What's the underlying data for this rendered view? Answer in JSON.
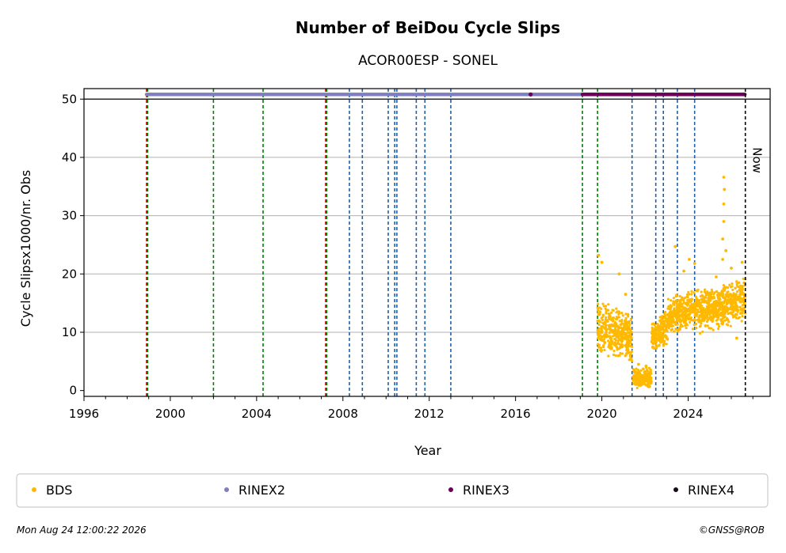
{
  "chart_data": {
    "type": "scatter",
    "title": "Number of BeiDou Cycle Slips",
    "subtitle": "ACOR00ESP - SONEL",
    "xlabel": "Year",
    "ylabel": "Cycle Slipsx1000/nr. Obs",
    "xlim": [
      1996,
      2027.8
    ],
    "ylim": [
      -1,
      51.8
    ],
    "xticks": [
      "1996",
      "2000",
      "2004",
      "2008",
      "2012",
      "2016",
      "2020",
      "2024"
    ],
    "yticks": [
      "0",
      "10",
      "20",
      "30",
      "40",
      "50"
    ],
    "grid": "horizontal",
    "legend_position": "bottom",
    "now_label": "Now",
    "now_date": 2026.65,
    "series": [
      {
        "name": "BDS",
        "color": "#ffb900"
      },
      {
        "name": "RINEX2",
        "color": "#7f7fbf"
      },
      {
        "name": "RINEX3",
        "color": "#6b0058"
      },
      {
        "name": "RINEX4",
        "color": "#1a0a1a"
      }
    ],
    "bds_segments": [
      {
        "x": [
          2019.8,
          2021.4
        ],
        "y": [
          5.5,
          14.5
        ],
        "trend": -0.5
      },
      {
        "x": [
          2021.45,
          2022.3
        ],
        "y": [
          0.3,
          4.0
        ],
        "trend": 0.0
      },
      {
        "x": [
          2022.3,
          2023.05
        ],
        "y": [
          7.0,
          13.0
        ],
        "trend": 0.5
      },
      {
        "x": [
          2023.05,
          2024.55
        ],
        "y": [
          10.0,
          17.0
        ],
        "trend": 0.3
      },
      {
        "x": [
          2024.55,
          2026.65
        ],
        "y": [
          10.5,
          18.5
        ],
        "trend": 0.6
      }
    ],
    "bds_outliers": [
      {
        "x": 2019.85,
        "y": 23.2
      },
      {
        "x": 2020.0,
        "y": 22.0
      },
      {
        "x": 2020.8,
        "y": 20.0
      },
      {
        "x": 2021.1,
        "y": 16.5
      },
      {
        "x": 2021.7,
        "y": 4.5
      },
      {
        "x": 2022.05,
        "y": 4.2
      },
      {
        "x": 2023.4,
        "y": 24.7
      },
      {
        "x": 2023.8,
        "y": 20.5
      },
      {
        "x": 2024.05,
        "y": 22.5
      },
      {
        "x": 2024.3,
        "y": 21.8
      },
      {
        "x": 2025.3,
        "y": 19.5
      },
      {
        "x": 2025.6,
        "y": 22.5
      },
      {
        "x": 2025.6,
        "y": 26.0
      },
      {
        "x": 2025.65,
        "y": 29.0
      },
      {
        "x": 2025.65,
        "y": 32.0
      },
      {
        "x": 2025.68,
        "y": 34.5
      },
      {
        "x": 2025.65,
        "y": 36.6
      },
      {
        "x": 2025.75,
        "y": 24.0
      },
      {
        "x": 2026.0,
        "y": 21.0
      },
      {
        "x": 2026.5,
        "y": 22.0
      },
      {
        "x": 2026.25,
        "y": 9.0
      }
    ],
    "rinex2_range": [
      1998.9,
      2019.2
    ],
    "rinex3_range": [
      2019.1,
      2026.65
    ],
    "rinex3_extra": [
      2016.7
    ],
    "rinex_y": 50.8,
    "events": [
      {
        "x": 1998.9,
        "color": "#cc0000"
      },
      {
        "x": 1998.95,
        "color": "#008000"
      },
      {
        "x": 2002.0,
        "color": "#008000"
      },
      {
        "x": 2004.3,
        "color": "#008000"
      },
      {
        "x": 2007.2,
        "color": "#cc0000"
      },
      {
        "x": 2007.25,
        "color": "#008000"
      },
      {
        "x": 2008.3,
        "color": "#1f5fa8"
      },
      {
        "x": 2008.9,
        "color": "#1f5fa8"
      },
      {
        "x": 2010.1,
        "color": "#1f5fa8"
      },
      {
        "x": 2010.4,
        "color": "#1f5fa8"
      },
      {
        "x": 2010.5,
        "color": "#1f5fa8"
      },
      {
        "x": 2011.4,
        "color": "#1f5fa8"
      },
      {
        "x": 2011.8,
        "color": "#1f5fa8"
      },
      {
        "x": 2013.0,
        "color": "#1f5fa8"
      },
      {
        "x": 2019.1,
        "color": "#008000"
      },
      {
        "x": 2019.8,
        "color": "#008000"
      },
      {
        "x": 2021.4,
        "color": "#1f5fa8"
      },
      {
        "x": 2022.5,
        "color": "#1f5fa8"
      },
      {
        "x": 2022.85,
        "color": "#1f5fa8"
      },
      {
        "x": 2023.5,
        "color": "#1f5fa8"
      },
      {
        "x": 2024.3,
        "color": "#1f5fa8"
      }
    ]
  },
  "footer": {
    "timestamp": "Mon Aug 24 12:00:22 2026",
    "credit": "©GNSS@ROB"
  }
}
